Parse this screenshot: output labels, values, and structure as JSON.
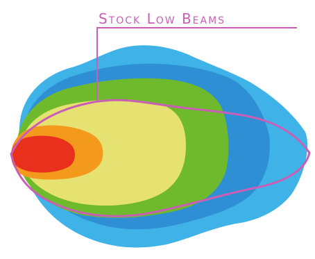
{
  "label": {
    "text": "Stock Low Beams"
  },
  "colors": {
    "outer_light_blue": "#3fb3e7",
    "mid_blue": "#2f8fd4",
    "green": "#6fba2c",
    "yellow": "#e6e272",
    "orange": "#f39a1c",
    "red": "#e8301d",
    "outline_magenta": "#c95fb5",
    "background": "#ffffff"
  }
}
